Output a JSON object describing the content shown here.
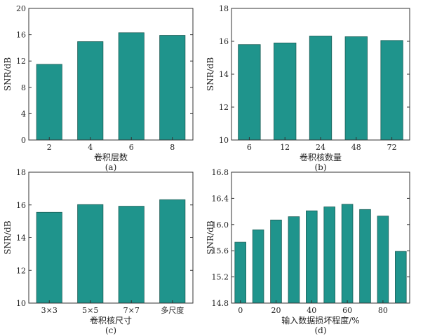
{
  "chart_data": [
    {
      "type": "bar",
      "panel_label": "(a)",
      "xlabel": "卷积层数",
      "ylabel": "SNR/dB",
      "categories": [
        "2",
        "4",
        "6",
        "8"
      ],
      "values": [
        11.5,
        14.95,
        16.3,
        15.9
      ],
      "ylim": [
        0,
        20
      ],
      "yticks": [
        0,
        4,
        8,
        12,
        16,
        20
      ],
      "ytick_labels": [
        "0",
        "4",
        "8",
        "12",
        "16",
        "20"
      ]
    },
    {
      "type": "bar",
      "panel_label": "(b)",
      "xlabel": "卷积核数量",
      "ylabel": "SNR/dB",
      "categories": [
        "6",
        "12",
        "24",
        "48",
        "72"
      ],
      "values": [
        15.8,
        15.9,
        16.32,
        16.28,
        16.05
      ],
      "ylim": [
        10,
        18
      ],
      "yticks": [
        10,
        12,
        14,
        16,
        18
      ],
      "ytick_labels": [
        "10",
        "12",
        "14",
        "16",
        "18"
      ]
    },
    {
      "type": "bar",
      "panel_label": "(c)",
      "xlabel": "卷积核尺寸",
      "ylabel": "SNR/dB",
      "categories": [
        "3×3",
        "5×5",
        "7×7",
        "多尺度"
      ],
      "values": [
        15.55,
        16.02,
        15.92,
        16.32
      ],
      "ylim": [
        10,
        18
      ],
      "yticks": [
        10,
        12,
        14,
        16,
        18
      ],
      "ytick_labels": [
        "10",
        "12",
        "14",
        "16",
        "18"
      ]
    },
    {
      "type": "bar",
      "panel_label": "(d)",
      "xlabel": "输入数据损坏程度/%",
      "ylabel": "SNR/dB",
      "x": [
        0,
        10,
        20,
        30,
        40,
        50,
        60,
        70,
        80,
        90
      ],
      "values": [
        15.73,
        15.92,
        16.07,
        16.12,
        16.21,
        16.27,
        16.31,
        16.23,
        16.13,
        15.59
      ],
      "xlim": [
        -5,
        95
      ],
      "xticks": [
        0,
        20,
        40,
        60,
        80
      ],
      "xtick_labels": [
        "0",
        "20",
        "40",
        "60",
        "80"
      ],
      "ylim": [
        14.8,
        16.8
      ],
      "yticks": [
        14.8,
        15.2,
        15.6,
        16.0,
        16.4,
        16.8
      ],
      "ytick_labels": [
        "14.8",
        "15.2",
        "15.6",
        "16.0",
        "16.4",
        "16.8"
      ]
    }
  ]
}
